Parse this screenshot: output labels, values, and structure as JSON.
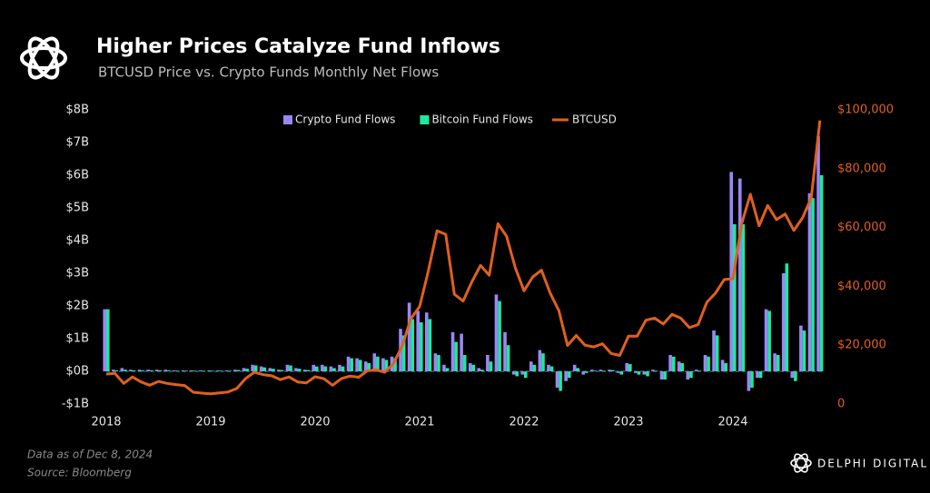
{
  "chart_data": {
    "type": "bar_line",
    "title": "Higher Prices Catalyze Fund Inflows",
    "subtitle": "BTCUSD Price vs. Crypto Funds Monthly Net Flows",
    "notes": [
      "Data as of Dec 8, 2024",
      "Source: Bloomberg"
    ],
    "brand": "DELPHI DIGITAL",
    "categories": [
      "2018",
      null,
      null,
      null,
      null,
      null,
      null,
      null,
      null,
      null,
      null,
      null,
      "2019",
      null,
      null,
      null,
      null,
      null,
      null,
      null,
      null,
      null,
      null,
      null,
      "2020",
      null,
      null,
      null,
      null,
      null,
      null,
      null,
      null,
      null,
      null,
      null,
      "2021",
      null,
      null,
      null,
      null,
      null,
      null,
      null,
      null,
      null,
      null,
      null,
      "2022",
      null,
      null,
      null,
      null,
      null,
      null,
      null,
      null,
      null,
      null,
      null,
      "2023",
      null,
      null,
      null,
      null,
      null,
      null,
      null,
      null,
      null,
      null,
      null,
      "2024",
      null,
      null,
      null,
      null,
      null,
      null,
      null,
      null,
      null,
      null
    ],
    "series": [
      {
        "name": "Crypto Fund Flows",
        "color": "#9b86f5",
        "kind": "bar",
        "values": [
          1.9,
          0.05,
          0.1,
          0.05,
          0.05,
          0.05,
          0.05,
          0.05,
          0.03,
          0.03,
          0.03,
          0.03,
          0.03,
          0.03,
          0.03,
          0.05,
          0.1,
          0.2,
          0.15,
          0.1,
          0.05,
          0.2,
          0.1,
          0.05,
          0.2,
          0.2,
          0.15,
          0.2,
          0.45,
          0.4,
          0.3,
          0.55,
          0.4,
          0.45,
          1.3,
          2.1,
          1.85,
          1.8,
          0.55,
          0.2,
          1.2,
          1.15,
          0.25,
          0.1,
          0.5,
          2.35,
          1.2,
          -0.1,
          -0.1,
          0.3,
          0.65,
          0.2,
          -0.5,
          -0.3,
          0.2,
          -0.1,
          0.05,
          0.05,
          0.05,
          -0.05,
          0.25,
          -0.05,
          -0.1,
          0.05,
          -0.25,
          0.5,
          0.3,
          -0.25,
          0.05,
          0.5,
          1.25,
          0.35,
          6.1,
          5.9,
          -0.6,
          -0.2,
          1.9,
          0.55,
          3.0,
          -0.2,
          1.4,
          5.45,
          7.2
        ]
      },
      {
        "name": "Bitcoin Fund Flows",
        "color": "#1de9a0",
        "kind": "bar",
        "values": [
          1.9,
          0.03,
          0.05,
          0.03,
          0.03,
          0.03,
          0.03,
          0.03,
          0.02,
          0.02,
          0.02,
          0.02,
          0.02,
          0.02,
          0.02,
          0.04,
          0.08,
          0.18,
          0.12,
          0.08,
          0.04,
          0.18,
          0.08,
          0.04,
          0.15,
          0.15,
          0.1,
          0.15,
          0.4,
          0.35,
          0.25,
          0.45,
          0.35,
          0.4,
          1.1,
          1.6,
          1.5,
          1.6,
          0.5,
          0.1,
          0.9,
          0.5,
          0.2,
          0.05,
          0.3,
          2.15,
          0.8,
          -0.15,
          -0.2,
          0.2,
          0.55,
          0.15,
          -0.6,
          -0.2,
          0.1,
          -0.05,
          0.02,
          0.02,
          0.04,
          -0.1,
          0.22,
          -0.1,
          -0.15,
          0.02,
          -0.25,
          0.45,
          0.25,
          -0.2,
          0.02,
          0.45,
          1.1,
          0.25,
          4.5,
          4.5,
          -0.5,
          -0.2,
          1.85,
          0.5,
          3.3,
          -0.3,
          1.25,
          5.3,
          6.0
        ]
      },
      {
        "name": "BTCUSD",
        "color": "#e0601f",
        "kind": "line",
        "axis": "y2",
        "values": [
          10200,
          10400,
          7000,
          9200,
          7500,
          6400,
          7700,
          7000,
          6600,
          6300,
          4000,
          3700,
          3450,
          3800,
          4100,
          5300,
          8600,
          10800,
          10000,
          9600,
          8300,
          9200,
          7500,
          7200,
          9300,
          8600,
          6400,
          8600,
          9500,
          9100,
          11300,
          11600,
          10800,
          13800,
          19700,
          29000,
          33100,
          45200,
          58900,
          57700,
          37300,
          35000,
          41500,
          47100,
          43800,
          61300,
          57000,
          46300,
          38500,
          43200,
          45500,
          37700,
          31800,
          19900,
          23300,
          20000,
          19400,
          20500,
          17200,
          16500,
          23100,
          23100,
          28500,
          29200,
          27200,
          30500,
          29200,
          26000,
          27000,
          34600,
          37700,
          42300,
          42600,
          61200,
          71300,
          60600,
          67500,
          62700,
          64600,
          59000,
          63300,
          70200,
          96400
        ]
      }
    ],
    "ylim": [
      -1,
      8
    ],
    "yticks": [
      {
        "value": -1,
        "label": "-$1B"
      },
      {
        "value": 0,
        "label": "$0B"
      },
      {
        "value": 1,
        "label": "$1B"
      },
      {
        "value": 2,
        "label": "$2B"
      },
      {
        "value": 3,
        "label": "$3B"
      },
      {
        "value": 4,
        "label": "$4B"
      },
      {
        "value": 5,
        "label": "$5B"
      },
      {
        "value": 6,
        "label": "$6B"
      },
      {
        "value": 7,
        "label": "$7B"
      },
      {
        "value": 8,
        "label": "$8B"
      }
    ],
    "y2lim": [
      0,
      100000
    ],
    "y2ticks": [
      0,
      {
        "value": 20000,
        "label": "$20,000"
      },
      {
        "value": 40000,
        "label": "$40,000"
      },
      {
        "value": 60000,
        "label": "$60,000"
      },
      {
        "value": 80000,
        "label": "$80,000"
      },
      {
        "value": 100000,
        "label": "$100,000"
      }
    ],
    "zero_line": true,
    "legend": "top"
  }
}
